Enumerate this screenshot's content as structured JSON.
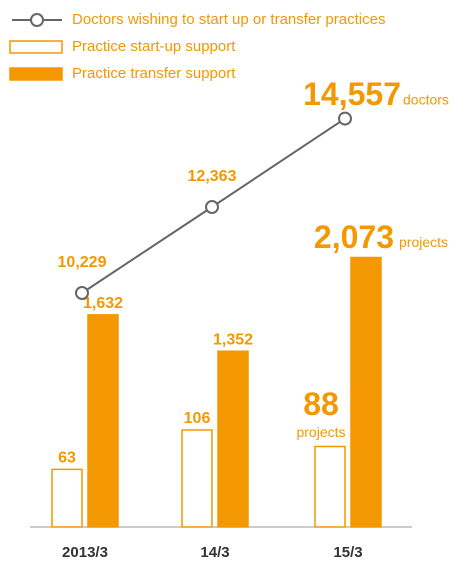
{
  "chart_data": {
    "type": "bar-line",
    "categories": [
      "2013/3",
      "14/3",
      "15/3"
    ],
    "series": [
      {
        "name": "Doctors wishing to start up or transfer practices",
        "type": "line",
        "color": "#666666",
        "values": [
          10229,
          12363,
          14557
        ],
        "value_labels": [
          "10,229",
          "12,363",
          "14,557"
        ],
        "unit": "doctors"
      },
      {
        "name": "Practice start-up support",
        "type": "bar",
        "color": "#f39800",
        "fill": "none",
        "values": [
          63,
          106,
          88
        ],
        "unit": "projects"
      },
      {
        "name": "Practice transfer support",
        "type": "bar",
        "color": "#f39800",
        "fill": "#f39800",
        "values": [
          1632,
          1352,
          2073
        ],
        "value_labels": [
          "1,632",
          "1,352",
          "2,073"
        ],
        "unit": "projects"
      }
    ],
    "legend": "top-left"
  }
}
